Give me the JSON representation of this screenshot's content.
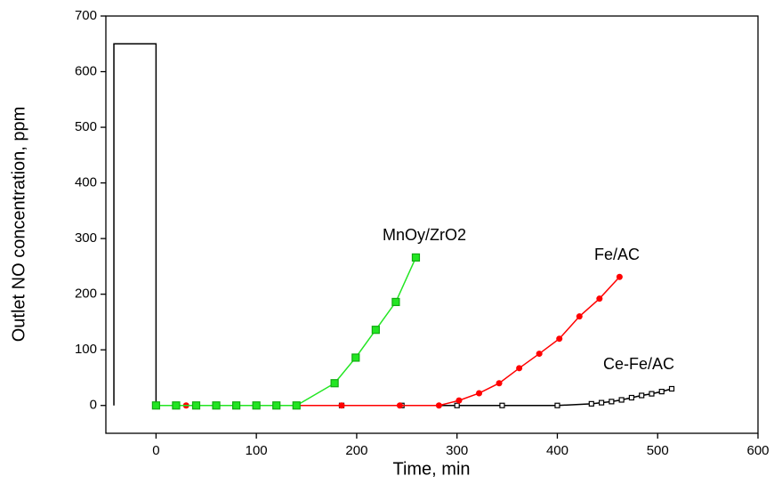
{
  "chart_data": {
    "type": "line",
    "xlabel": "Time, min",
    "ylabel": "Outlet NO concentration, ppm",
    "xlim": [
      -50,
      600
    ],
    "ylim": [
      -50,
      700
    ],
    "xticks": [
      0,
      100,
      200,
      300,
      400,
      500,
      600
    ],
    "yticks": [
      0,
      100,
      200,
      300,
      400,
      500,
      600,
      700
    ],
    "series": [
      {
        "color": "#000000",
        "marker": "none",
        "x": [
          -42,
          -42,
          0,
          0
        ],
        "values": [
          0,
          650,
          650,
          0
        ]
      },
      {
        "name": "Ce-Fe/AC",
        "color": "#000000",
        "marker": "square",
        "x": [
          0,
          20,
          40,
          60,
          80,
          100,
          120,
          140,
          185,
          245,
          300,
          345,
          400,
          434,
          444,
          454,
          464,
          474,
          484,
          494,
          504,
          514
        ],
        "values": [
          0,
          0,
          0,
          0,
          0,
          0,
          0,
          0,
          0,
          0,
          0,
          0,
          0,
          3,
          5,
          7,
          10,
          14,
          18,
          21,
          25,
          30
        ]
      },
      {
        "name": "Fe/AC",
        "color": "#ff0000",
        "marker": "circle",
        "x": [
          0,
          30,
          60,
          120,
          185,
          243,
          282,
          302,
          322,
          342,
          362,
          382,
          402,
          422,
          442,
          462
        ],
        "values": [
          0,
          0,
          0,
          0,
          0,
          0,
          0,
          9,
          22,
          40,
          67,
          93,
          120,
          160,
          192,
          231
        ]
      },
      {
        "name": "MnOy/ZrO2",
        "color": "#22e622",
        "marker": "square",
        "x": [
          0,
          20,
          40,
          60,
          80,
          100,
          120,
          140,
          178,
          199,
          219,
          239,
          259
        ],
        "values": [
          0,
          0,
          0,
          0,
          0,
          0,
          0,
          0,
          40,
          86,
          136,
          186,
          266
        ]
      }
    ]
  }
}
